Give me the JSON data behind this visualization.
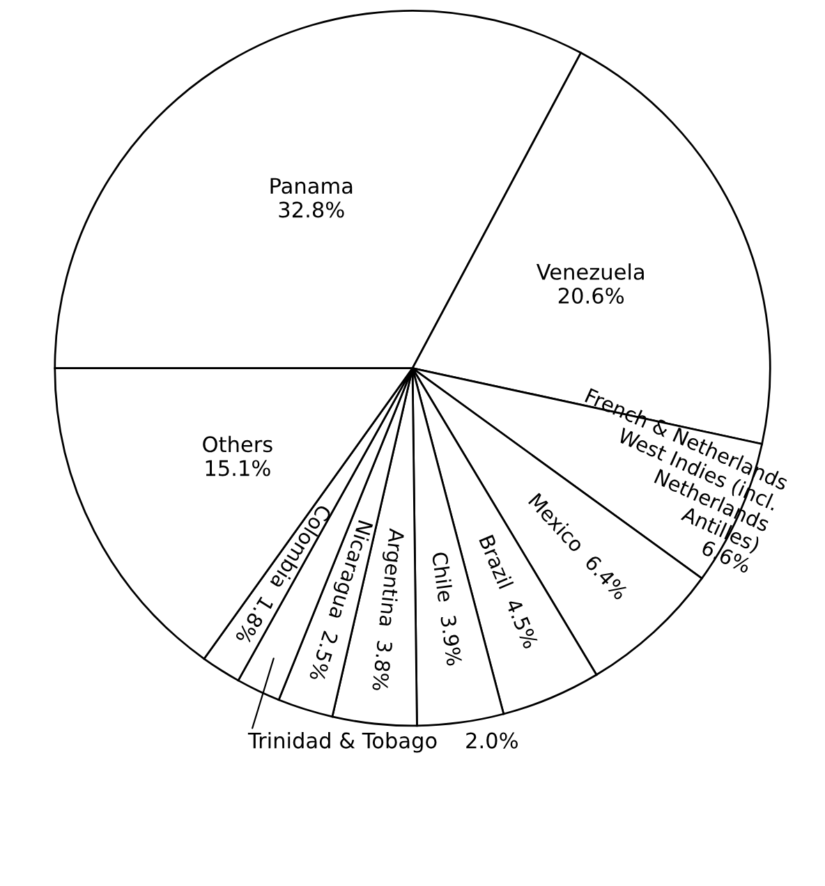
{
  "chart_data": {
    "type": "pie",
    "categories": [
      "Panama",
      "Venezuela",
      "French & Netherlands\nWest Indies (incl.\nNetherlands\nAntilles)",
      "Mexico",
      "Brazil",
      "Chile",
      "Argentina",
      "Nicaragua",
      "Trinidad & Tobago",
      "Colombia",
      "Others"
    ],
    "values": [
      32.8,
      20.6,
      6.6,
      6.4,
      4.5,
      3.9,
      3.8,
      2.5,
      2.0,
      1.8,
      15.1
    ],
    "value_labels": [
      "32.8%",
      "20.6%",
      "6.6%",
      "6.4%",
      "4.5%",
      "3.9%",
      "3.8%",
      "2.5%",
      "2.0%",
      "1.8%",
      "15.1%"
    ],
    "colors": [
      "#ffffff",
      "#ffffff",
      "#ffffff",
      "#ffffff",
      "#ffffff",
      "#ffffff",
      "#ffffff",
      "#ffffff",
      "#ffffff",
      "#ffffff",
      "#ffffff"
    ]
  }
}
